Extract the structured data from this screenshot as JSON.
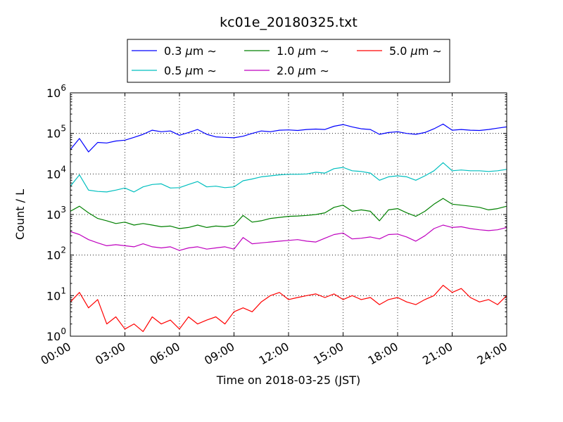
{
  "chart_data": {
    "type": "line",
    "title": "kc01e_20180325.txt",
    "xlabel": "Time on 2018-03-25 (JST)",
    "ylabel": "Count / L",
    "y_scale": "log",
    "ylim": [
      1,
      1000000
    ],
    "xlim": [
      "00:00",
      "24:00"
    ],
    "x_ticks": [
      "00:00",
      "03:00",
      "06:00",
      "09:00",
      "12:00",
      "15:00",
      "18:00",
      "21:00",
      "24:00"
    ],
    "y_ticks": [
      {
        "base": "10",
        "exp": "0",
        "value": 1
      },
      {
        "base": "10",
        "exp": "1",
        "value": 10
      },
      {
        "base": "10",
        "exp": "2",
        "value": 100
      },
      {
        "base": "10",
        "exp": "3",
        "value": 1000
      },
      {
        "base": "10",
        "exp": "4",
        "value": 10000
      },
      {
        "base": "10",
        "exp": "5",
        "value": 100000
      },
      {
        "base": "10",
        "exp": "6",
        "value": 1000000
      }
    ],
    "grid": true,
    "legend_position": "top-center",
    "x": [
      "00:00",
      "00:30",
      "01:00",
      "01:30",
      "02:00",
      "02:30",
      "03:00",
      "03:30",
      "04:00",
      "04:30",
      "05:00",
      "05:30",
      "06:00",
      "06:30",
      "07:00",
      "07:30",
      "08:00",
      "08:30",
      "09:00",
      "09:30",
      "10:00",
      "10:30",
      "11:00",
      "11:30",
      "12:00",
      "12:30",
      "13:00",
      "13:30",
      "14:00",
      "14:30",
      "15:00",
      "15:30",
      "16:00",
      "16:30",
      "17:00",
      "17:30",
      "18:00",
      "18:30",
      "19:00",
      "19:30",
      "20:00",
      "20:30",
      "21:00",
      "21:30",
      "22:00",
      "22:30",
      "23:00",
      "23:30",
      "24:00"
    ],
    "series": [
      {
        "name": "0.3",
        "color": "#0000ff",
        "values": [
          40000,
          75000,
          35000,
          60000,
          58000,
          65000,
          68000,
          80000,
          95000,
          120000,
          110000,
          115000,
          90000,
          105000,
          125000,
          95000,
          82000,
          80000,
          78000,
          85000,
          100000,
          115000,
          110000,
          120000,
          122000,
          118000,
          125000,
          128000,
          125000,
          150000,
          165000,
          145000,
          130000,
          125000,
          95000,
          105000,
          110000,
          100000,
          95000,
          105000,
          130000,
          170000,
          120000,
          125000,
          120000,
          118000,
          125000,
          135000,
          145000
        ]
      },
      {
        "name": "0.5",
        "color": "#00bfbf",
        "values": [
          5000,
          9500,
          4000,
          3700,
          3600,
          4000,
          4500,
          3600,
          4800,
          5500,
          5700,
          4500,
          4600,
          5500,
          6500,
          4800,
          5000,
          4600,
          4800,
          6800,
          7500,
          8500,
          9000,
          9500,
          9800,
          9800,
          10000,
          11000,
          10500,
          13500,
          14500,
          12000,
          11500,
          10500,
          7000,
          8500,
          9000,
          8500,
          7000,
          9000,
          12000,
          19000,
          12000,
          12500,
          12000,
          12000,
          11500,
          12000,
          13000
        ]
      },
      {
        "name": "1.0",
        "color": "#008000",
        "values": [
          1200,
          1600,
          1100,
          800,
          700,
          600,
          650,
          550,
          600,
          550,
          500,
          520,
          450,
          480,
          550,
          480,
          520,
          500,
          540,
          950,
          650,
          700,
          800,
          850,
          900,
          920,
          950,
          1000,
          1100,
          1500,
          1700,
          1200,
          1300,
          1200,
          700,
          1300,
          1400,
          1100,
          900,
          1200,
          1800,
          2500,
          1800,
          1700,
          1600,
          1500,
          1300,
          1400,
          1600
        ]
      },
      {
        "name": "2.0",
        "color": "#bf00bf",
        "values": [
          380,
          320,
          240,
          200,
          170,
          180,
          170,
          160,
          190,
          160,
          150,
          160,
          130,
          150,
          160,
          140,
          150,
          160,
          140,
          270,
          190,
          200,
          210,
          220,
          230,
          240,
          220,
          210,
          260,
          320,
          350,
          250,
          260,
          280,
          250,
          320,
          330,
          280,
          220,
          300,
          450,
          550,
          480,
          500,
          450,
          420,
          400,
          420,
          480
        ]
      },
      {
        "name": "5.0",
        "color": "#ff0000",
        "values": [
          7,
          12,
          5,
          8,
          2,
          3,
          1.5,
          2,
          1.3,
          3,
          2,
          2.5,
          1.5,
          3,
          2,
          2.5,
          3,
          2,
          4,
          5,
          4,
          7,
          10,
          12,
          8,
          9,
          10,
          11,
          9,
          11,
          8,
          10,
          8,
          9,
          6,
          8,
          9,
          7,
          6,
          8,
          10,
          18,
          12,
          15,
          9,
          7,
          8,
          6,
          10
        ]
      }
    ],
    "legend_unit": "μm",
    "legend_suffix": "∼"
  }
}
